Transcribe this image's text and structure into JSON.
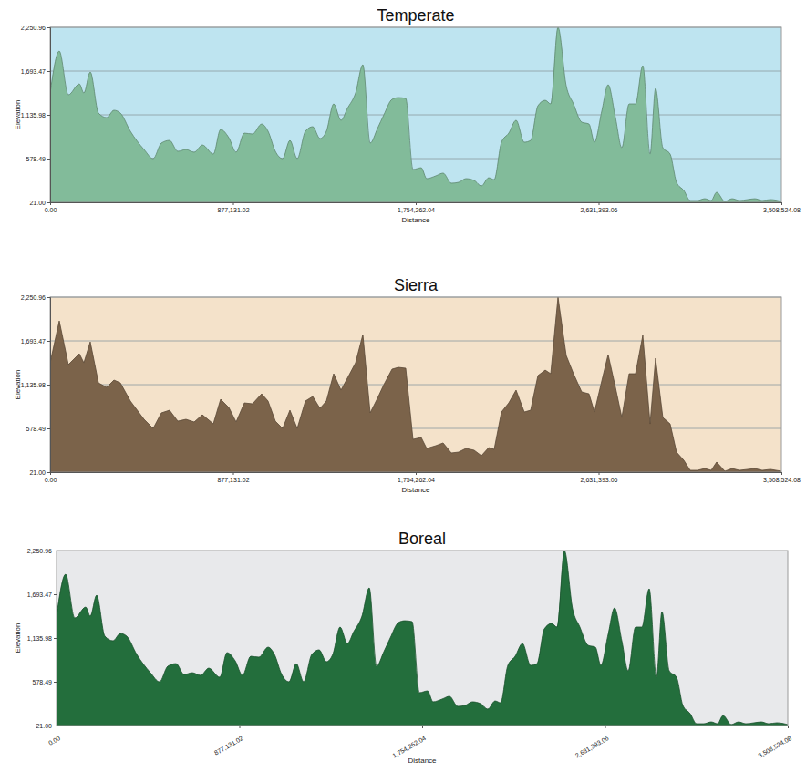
{
  "chart_data": [
    {
      "type": "area",
      "title": "Temperate",
      "x_label": "Distance",
      "y_label": "Elevation",
      "color": "#82bb9a",
      "line_style": "smooth",
      "grid": true,
      "x": [
        0,
        43746,
        87492,
        139987,
        161860,
        192482,
        231854,
        271225,
        306222,
        336844,
        384965,
        450584,
        494330,
        533701,
        573073,
        612444,
        651815,
        691187,
        730558,
        783053,
        818050,
        857422,
        892419,
        931790,
        971161,
        1014907,
        1045529,
        1080526,
        1115523,
        1150520,
        1185517,
        1224888,
        1259885,
        1294882,
        1325504,
        1360501,
        1395498,
        1426120,
        1465491,
        1500488,
        1535485,
        1570481,
        1601104,
        1640475,
        1671097,
        1706094,
        1741091,
        1780462,
        1806710,
        1850456,
        1885453,
        1924824,
        1959821,
        1994818,
        2034189,
        2069186,
        2104183,
        2130430,
        2165427,
        2200424,
        2235421,
        2274792,
        2305414,
        2340411,
        2375408,
        2401656,
        2436653,
        2476024,
        2511021,
        2550392,
        2585389,
        2611637,
        2646634,
        2677256,
        2712253,
        2742876,
        2777873,
        2808495,
        2843492,
        2878489,
        2904736,
        2939733,
        2974730,
        3005353,
        3040350,
        3070972,
        3105969,
        3140966,
        3171588,
        3197836,
        3237207,
        3272204,
        3307201,
        3346572,
        3381569,
        3416566,
        3455937,
        3508524
      ],
      "values": [
        1414,
        1948,
        1391,
        1530,
        1414,
        1681,
        1159,
        1101,
        1194,
        1159,
        927,
        694,
        578,
        776,
        810,
        671,
        694,
        660,
        752,
        636,
        950,
        845,
        660,
        903,
        892,
        1019,
        927,
        671,
        578,
        810,
        578,
        927,
        985,
        834,
        927,
        1275,
        1066,
        1217,
        1414,
        1774,
        776,
        961,
        1136,
        1333,
        1356,
        1345,
        439,
        462,
        323,
        358,
        393,
        265,
        276,
        323,
        300,
        230,
        334,
        311,
        787,
        903,
        1066,
        787,
        810,
        1252,
        1321,
        1275,
        2250,
        1507,
        1275,
        1043,
        1019,
        787,
        1182,
        1519,
        1101,
        717,
        1275,
        1275,
        1763,
        636,
        1472,
        717,
        636,
        276,
        172,
        44,
        44,
        67,
        44,
        149,
        33,
        67,
        44,
        56,
        67,
        44,
        56,
        33
      ],
      "xlim": [
        0,
        3508524.08
      ],
      "ylim": [
        21,
        2250.96
      ],
      "xticks": [
        {
          "value": 0,
          "label": "0.00"
        },
        {
          "value": 877131.02,
          "label": "877,131.02"
        },
        {
          "value": 1754262.04,
          "label": "1,754,262.04"
        },
        {
          "value": 2631393.06,
          "label": "2,631,393.06"
        },
        {
          "value": 3508524.08,
          "label": "3,508,524.08"
        }
      ],
      "yticks": [
        {
          "value": 21,
          "label": "21.00"
        },
        {
          "value": 578.49,
          "label": "578.49"
        },
        {
          "value": 1135.98,
          "label": "1,135.98"
        },
        {
          "value": 1693.47,
          "label": "1,693.47"
        },
        {
          "value": 2250.96,
          "label": "2,250.96"
        }
      ]
    },
    {
      "type": "area",
      "title": "Sierra",
      "x_label": "Distance",
      "y_label": "Elevation",
      "color": "#7b634a",
      "line_style": "straight",
      "grid": true,
      "x": [
        0,
        43746,
        87492,
        139987,
        161860,
        192482,
        231854,
        271225,
        306222,
        336844,
        384965,
        450584,
        494330,
        533701,
        573073,
        612444,
        651815,
        691187,
        730558,
        783053,
        818050,
        857422,
        892419,
        931790,
        971161,
        1014907,
        1045529,
        1080526,
        1115523,
        1150520,
        1185517,
        1224888,
        1259885,
        1294882,
        1325504,
        1360501,
        1395498,
        1426120,
        1465491,
        1500488,
        1535485,
        1570481,
        1601104,
        1640475,
        1671097,
        1706094,
        1741091,
        1780462,
        1806710,
        1850456,
        1885453,
        1924824,
        1959821,
        1994818,
        2034189,
        2069186,
        2104183,
        2130430,
        2165427,
        2200424,
        2235421,
        2274792,
        2305414,
        2340411,
        2375408,
        2401656,
        2436653,
        2476024,
        2511021,
        2550392,
        2585389,
        2611637,
        2646634,
        2677256,
        2712253,
        2742876,
        2777873,
        2808495,
        2843492,
        2878489,
        2904736,
        2939733,
        2974730,
        3005353,
        3040350,
        3070972,
        3105969,
        3140966,
        3171588,
        3197836,
        3237207,
        3272204,
        3307201,
        3346572,
        3381569,
        3416566,
        3455937,
        3508524
      ],
      "values": [
        1414,
        1948,
        1391,
        1530,
        1414,
        1681,
        1159,
        1101,
        1194,
        1159,
        927,
        694,
        578,
        776,
        810,
        671,
        694,
        660,
        752,
        636,
        950,
        845,
        660,
        903,
        892,
        1019,
        927,
        671,
        578,
        810,
        578,
        927,
        985,
        834,
        927,
        1275,
        1066,
        1217,
        1414,
        1774,
        776,
        961,
        1136,
        1333,
        1356,
        1345,
        439,
        462,
        323,
        358,
        393,
        265,
        276,
        323,
        300,
        230,
        334,
        311,
        787,
        903,
        1066,
        787,
        810,
        1252,
        1321,
        1275,
        2250,
        1507,
        1275,
        1043,
        1019,
        787,
        1182,
        1519,
        1101,
        717,
        1275,
        1275,
        1763,
        636,
        1472,
        717,
        636,
        276,
        172,
        44,
        44,
        67,
        44,
        149,
        33,
        67,
        44,
        56,
        67,
        44,
        56,
        33
      ],
      "xlim": [
        0,
        3508524.08
      ],
      "ylim": [
        21,
        2250.96
      ],
      "xticks": [
        {
          "value": 0,
          "label": "0.00"
        },
        {
          "value": 877131.02,
          "label": "877,131.02"
        },
        {
          "value": 1754262.04,
          "label": "1,754,262.04"
        },
        {
          "value": 2631393.06,
          "label": "2,631,393.06"
        },
        {
          "value": 3508524.08,
          "label": "3,508,524.08"
        }
      ],
      "yticks": [
        {
          "value": 21,
          "label": "21.00"
        },
        {
          "value": 578.49,
          "label": "578.49"
        },
        {
          "value": 1135.98,
          "label": "1,135.98"
        },
        {
          "value": 1693.47,
          "label": "1,693.47"
        },
        {
          "value": 2250.96,
          "label": "2,250.96"
        }
      ]
    },
    {
      "type": "area",
      "title": "Boreal",
      "x_label": "Distance",
      "y_label": "Elevation",
      "color": "#236e3c",
      "line_style": "smooth",
      "grid": false,
      "x": [
        0,
        43746,
        87492,
        139987,
        161860,
        192482,
        231854,
        271225,
        306222,
        336844,
        384965,
        450584,
        494330,
        533701,
        573073,
        612444,
        651815,
        691187,
        730558,
        783053,
        818050,
        857422,
        892419,
        931790,
        971161,
        1014907,
        1045529,
        1080526,
        1115523,
        1150520,
        1185517,
        1224888,
        1259885,
        1294882,
        1325504,
        1360501,
        1395498,
        1426120,
        1465491,
        1500488,
        1535485,
        1570481,
        1601104,
        1640475,
        1671097,
        1706094,
        1741091,
        1780462,
        1806710,
        1850456,
        1885453,
        1924824,
        1959821,
        1994818,
        2034189,
        2069186,
        2104183,
        2130430,
        2165427,
        2200424,
        2235421,
        2274792,
        2305414,
        2340411,
        2375408,
        2401656,
        2436653,
        2476024,
        2511021,
        2550392,
        2585389,
        2611637,
        2646634,
        2677256,
        2712253,
        2742876,
        2777873,
        2808495,
        2843492,
        2878489,
        2904736,
        2939733,
        2974730,
        3005353,
        3040350,
        3070972,
        3105969,
        3140966,
        3171588,
        3197836,
        3237207,
        3272204,
        3307201,
        3346572,
        3381569,
        3416566,
        3455937,
        3508524
      ],
      "values": [
        1414,
        1948,
        1391,
        1530,
        1414,
        1681,
        1159,
        1101,
        1194,
        1159,
        927,
        694,
        578,
        776,
        810,
        671,
        694,
        660,
        752,
        636,
        950,
        845,
        660,
        903,
        892,
        1019,
        927,
        671,
        578,
        810,
        578,
        927,
        985,
        834,
        927,
        1275,
        1066,
        1217,
        1414,
        1774,
        776,
        961,
        1136,
        1333,
        1356,
        1345,
        439,
        462,
        323,
        358,
        393,
        265,
        276,
        323,
        300,
        230,
        334,
        311,
        787,
        903,
        1066,
        787,
        810,
        1252,
        1321,
        1275,
        2250,
        1507,
        1275,
        1043,
        1019,
        787,
        1182,
        1519,
        1101,
        717,
        1275,
        1275,
        1763,
        636,
        1472,
        717,
        636,
        276,
        172,
        44,
        44,
        67,
        44,
        149,
        33,
        67,
        44,
        56,
        67,
        44,
        56,
        33
      ],
      "xlim": [
        0,
        3508524.08
      ],
      "ylim": [
        21,
        2250.96
      ],
      "xticks": [
        {
          "value": 0,
          "label": "0.00"
        },
        {
          "value": 877131.02,
          "label": "877,131.02"
        },
        {
          "value": 1754262.04,
          "label": "1,754,262.04"
        },
        {
          "value": 2631393.06,
          "label": "2,631,393.06"
        },
        {
          "value": 3508524.08,
          "label": "3,508,524.08"
        }
      ],
      "yticks": [
        {
          "value": 21,
          "label": "21.00"
        },
        {
          "value": 578.49,
          "label": "578.49"
        },
        {
          "value": 1135.98,
          "label": "1,135.98"
        },
        {
          "value": 1693.47,
          "label": "1,693.47"
        },
        {
          "value": 2250.96,
          "label": "2,250.96"
        }
      ]
    }
  ]
}
